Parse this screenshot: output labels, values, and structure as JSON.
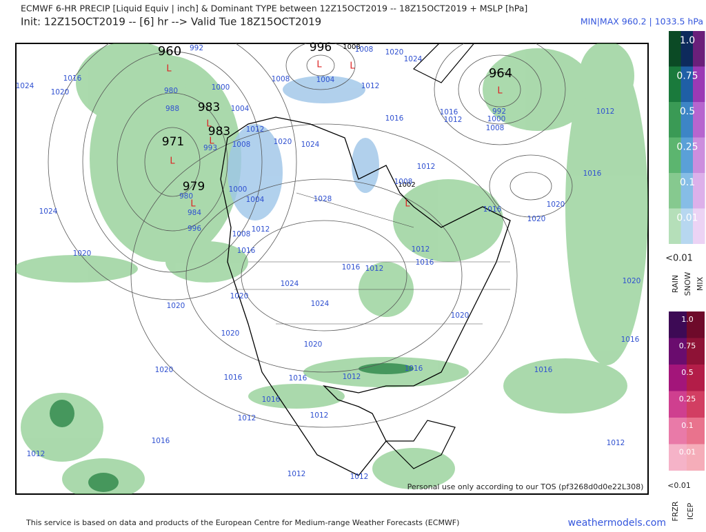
{
  "header": {
    "title": "ECMWF 6-HR PRECIP [Liquid Equiv | inch] & Dominant TYPE between 12Z15OCT2019 -- 18Z15OCT2019 + MSLP [hPa]",
    "init": "Init: 12Z15OCT2019 -- [6] hr --> Valid Tue 18Z15OCT2019",
    "minmax": "MIN|MAX 960.2 | 1033.5 hPa"
  },
  "legend_rain": {
    "levels": [
      "1.0",
      "0.75",
      "0.5",
      "0.25",
      "0.1",
      "0.01"
    ],
    "below": "<0.01",
    "types": [
      "RAIN",
      "SNOW",
      "MIX"
    ]
  },
  "legend_freezing": {
    "levels": [
      "1.0",
      "0.75",
      "0.5",
      "0.25",
      "0.1",
      "0.01"
    ],
    "below": "<0.01",
    "types": [
      "FRZR",
      "ICEP"
    ]
  },
  "map": {
    "low_symbol": "L",
    "low_centers": [
      "960",
      "996",
      "1008",
      "964",
      "983",
      "983",
      "971",
      "979",
      "1002"
    ],
    "isobar_labels": [
      "992",
      "1024",
      "1016",
      "1020",
      "980",
      "988",
      "1000",
      "1004",
      "1008",
      "1012",
      "1004",
      "1008",
      "1020",
      "1024",
      "1012",
      "1016",
      "1012",
      "1016",
      "1000",
      "992",
      "1008",
      "1012",
      "1016",
      "1020",
      "1020",
      "1016",
      "1012",
      "1008",
      "1008",
      "1020",
      "1024",
      "993",
      "1000",
      "1004",
      "980",
      "984",
      "996",
      "1024",
      "1012",
      "1008",
      "1016",
      "1020",
      "1028",
      "1016",
      "1012",
      "1012",
      "1016",
      "1024",
      "1020",
      "1024",
      "1020",
      "1020",
      "1020",
      "1016",
      "1020",
      "1020",
      "1016",
      "1016",
      "1012",
      "1016",
      "1016",
      "1020",
      "1016",
      "1012",
      "1012",
      "1016",
      "1012",
      "1012",
      "1012",
      "1012"
    ]
  },
  "footer": {
    "source": "This service is based on data and products of the European Centre for Medium-range Weather Forecasts (ECMWF)",
    "site": "weathermodels.com",
    "tos": "Personal use only according to our TOS (pf3268d0d0e22L308)"
  }
}
